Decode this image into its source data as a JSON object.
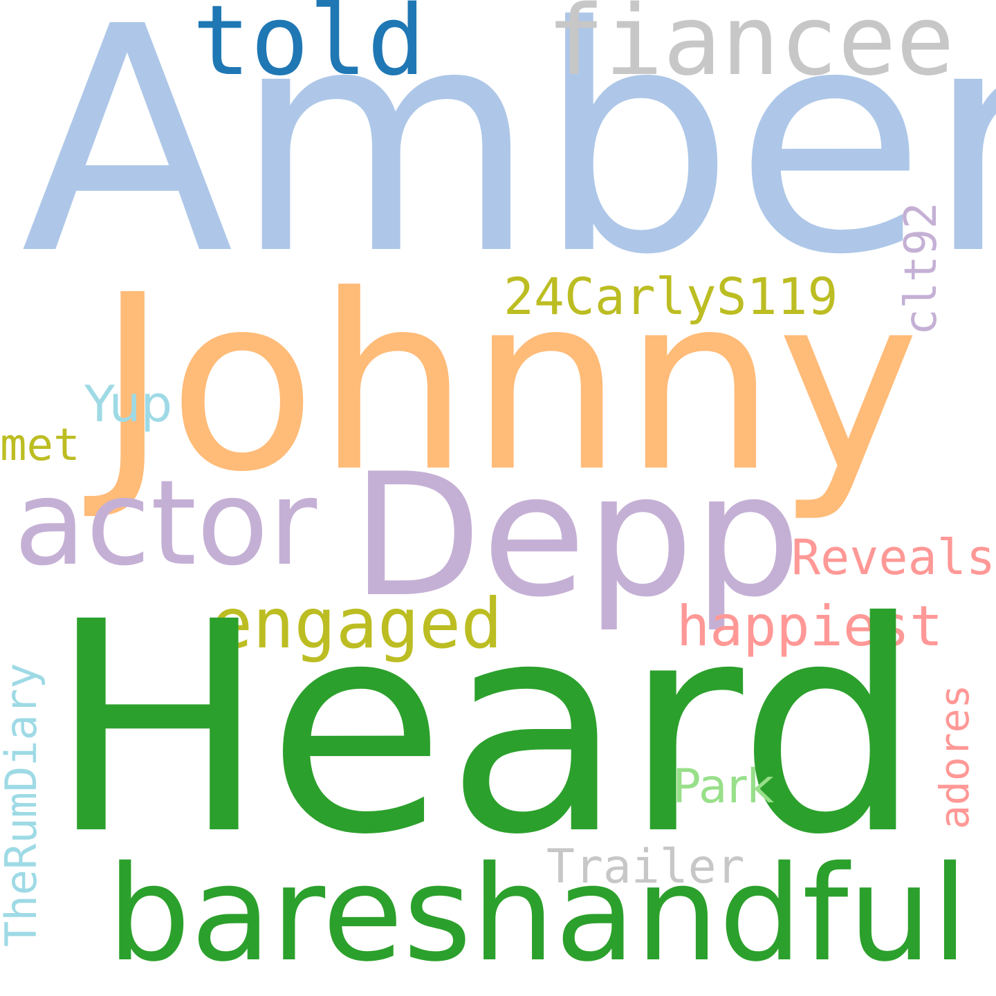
{
  "words": {
    "amber": {
      "text": "Amber",
      "color": "#aec7e8"
    },
    "johnny": {
      "text": "Johnny",
      "color": "#ffbb78"
    },
    "heard": {
      "text": "Heard",
      "color": "#2ca02c"
    },
    "depp": {
      "text": "Depp",
      "color": "#c5b0d5"
    },
    "actor": {
      "text": "actor",
      "color": "#c5b0d5"
    },
    "told": {
      "text": "told",
      "color": "#1f77b4"
    },
    "fiancee": {
      "text": "fiancee",
      "color": "#c7c7c7"
    },
    "bareshandful": {
      "text": "bareshandful",
      "color": "#2ca02c"
    },
    "engaged": {
      "text": "engaged",
      "color": "#bcbd22"
    },
    "carly": {
      "text": "24CarlyS119",
      "color": "#bcbd22"
    },
    "clt92": {
      "text": "clt92",
      "color": "#c5b0d5"
    },
    "yup": {
      "text": "Yup",
      "color": "#9edae5"
    },
    "met": {
      "text": "met",
      "color": "#bcbd22"
    },
    "reveals": {
      "text": "Reveals",
      "color": "#ff9896"
    },
    "happiest": {
      "text": "happiest",
      "color": "#ff9896"
    },
    "adores": {
      "text": "adores",
      "color": "#ff9896"
    },
    "therumdiary": {
      "text": "TheRumDiary",
      "color": "#9edae5"
    },
    "park": {
      "text": "Park",
      "color": "#98df8a"
    },
    "trailer": {
      "text": "Trailer",
      "color": "#c7c7c7"
    }
  }
}
